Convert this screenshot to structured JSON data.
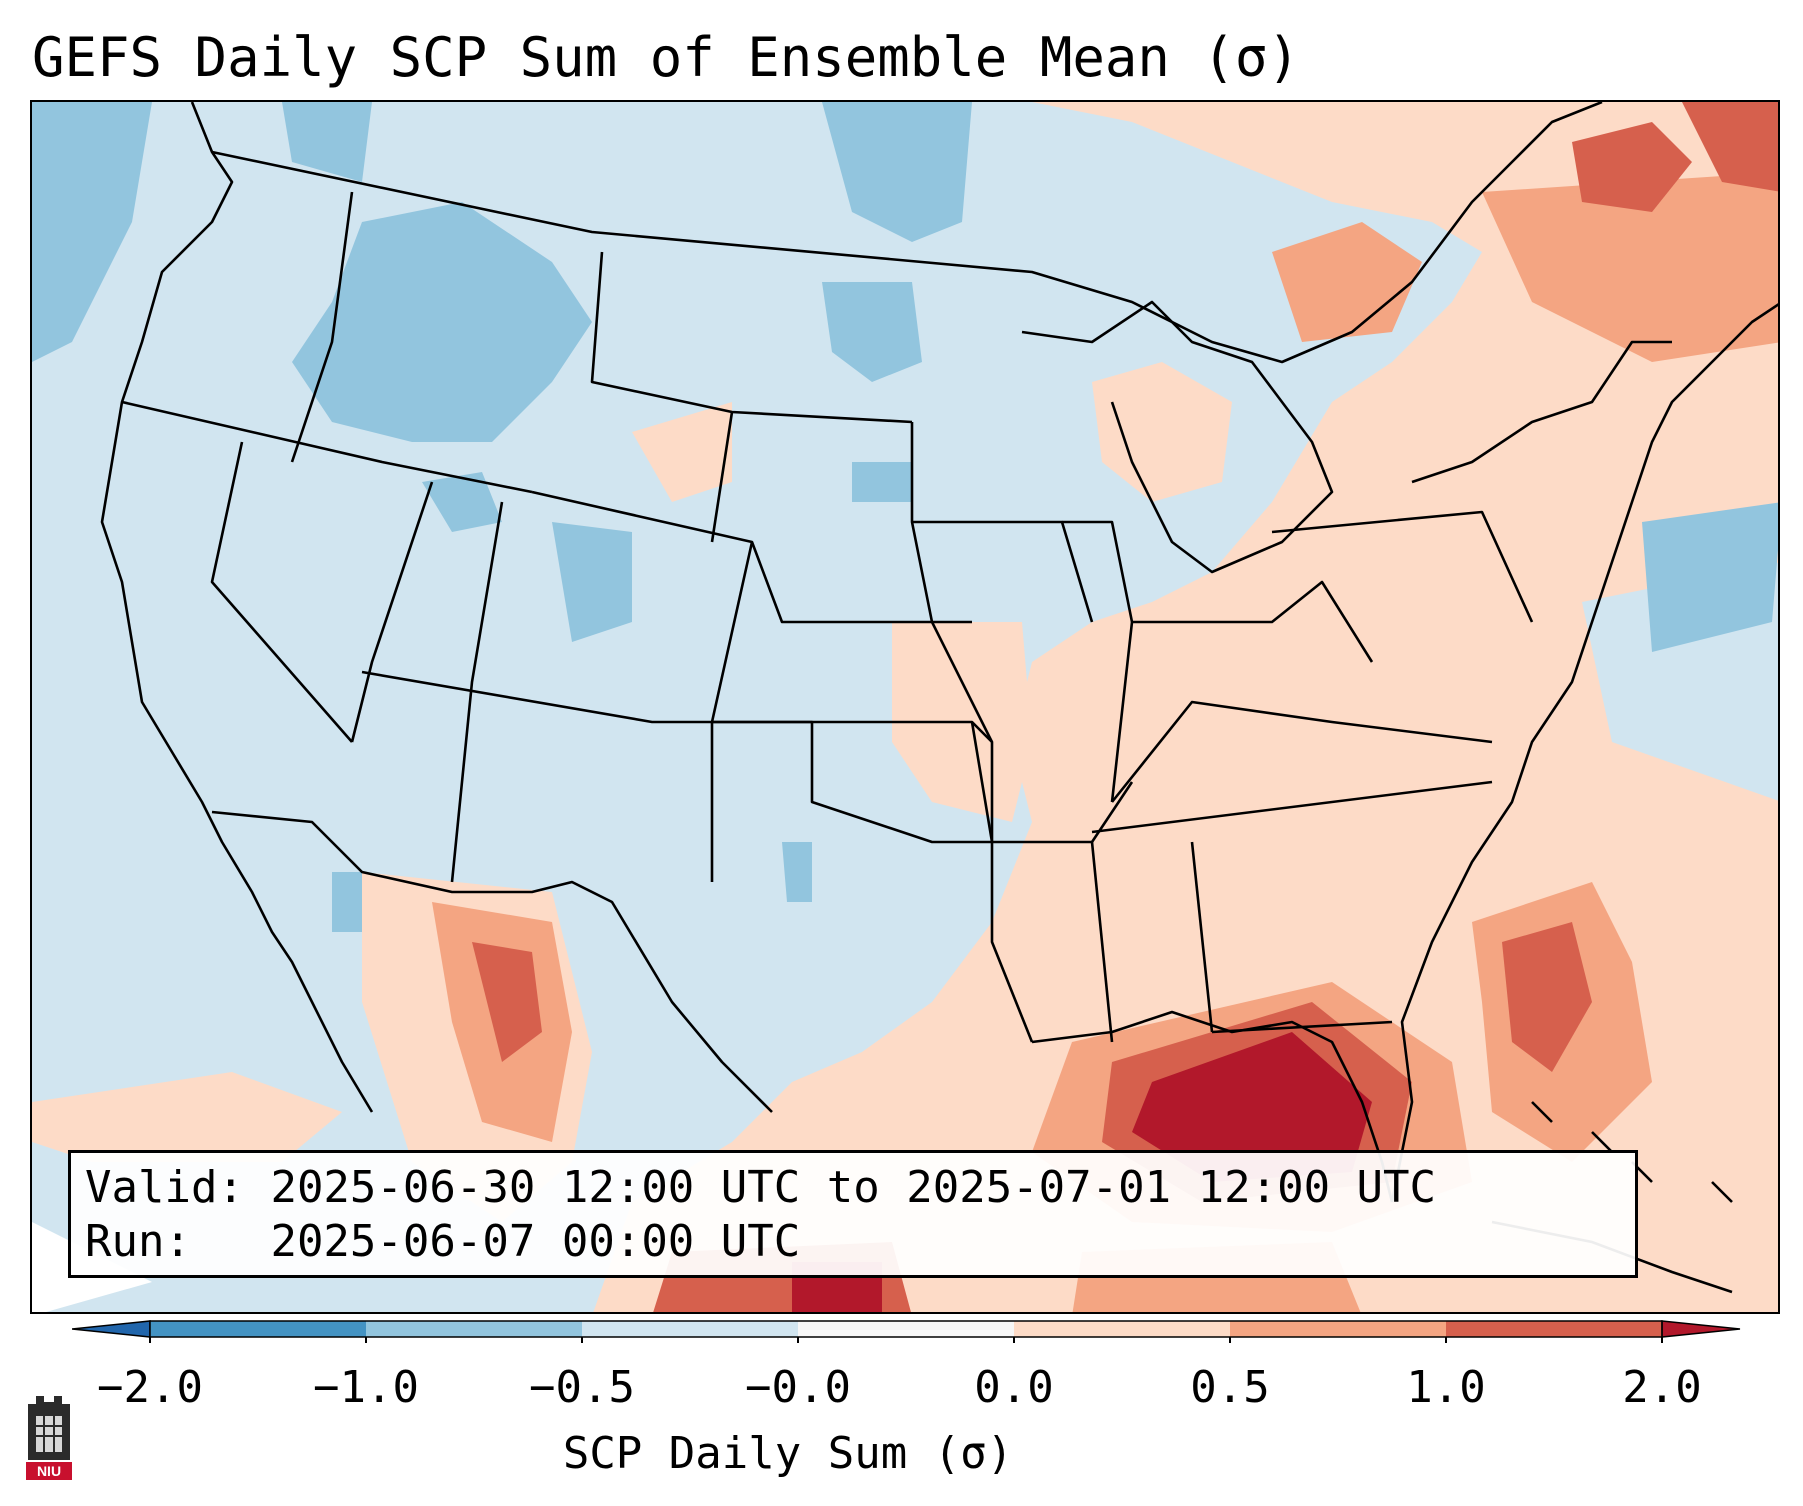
{
  "title": "GEFS Daily SCP Sum of Ensemble Mean (σ)",
  "info": {
    "valid_label": "Valid:",
    "valid_value": "2025-06-30 12:00 UTC to 2025-07-01 12:00 UTC",
    "run_label": "Run:",
    "run_value": "2025-06-07 00:00 UTC"
  },
  "colorbar": {
    "label": "SCP Daily Sum (σ)",
    "ticks": [
      "−2.0",
      "−1.0",
      "−0.5",
      "−0.0",
      "0.0",
      "0.5",
      "1.0",
      "2.0"
    ],
    "bins": [
      {
        "from": -2.0,
        "to": -1.0,
        "color": "#4393c3"
      },
      {
        "from": -1.0,
        "to": -0.5,
        "color": "#92c5de"
      },
      {
        "from": -0.5,
        "to": -0.0,
        "color": "#d1e5f0"
      },
      {
        "from": -0.0,
        "to": 0.0,
        "color": "#f7f7f7"
      },
      {
        "from": 0.0,
        "to": 0.5,
        "color": "#fddbc7"
      },
      {
        "from": 0.5,
        "to": 1.0,
        "color": "#f4a582"
      },
      {
        "from": 1.0,
        "to": 2.0,
        "color": "#d6604d"
      }
    ],
    "under_color": "#2166ac",
    "over_color": "#b2182b"
  },
  "logo": {
    "text": "NIU",
    "color": "#c8102e"
  }
}
